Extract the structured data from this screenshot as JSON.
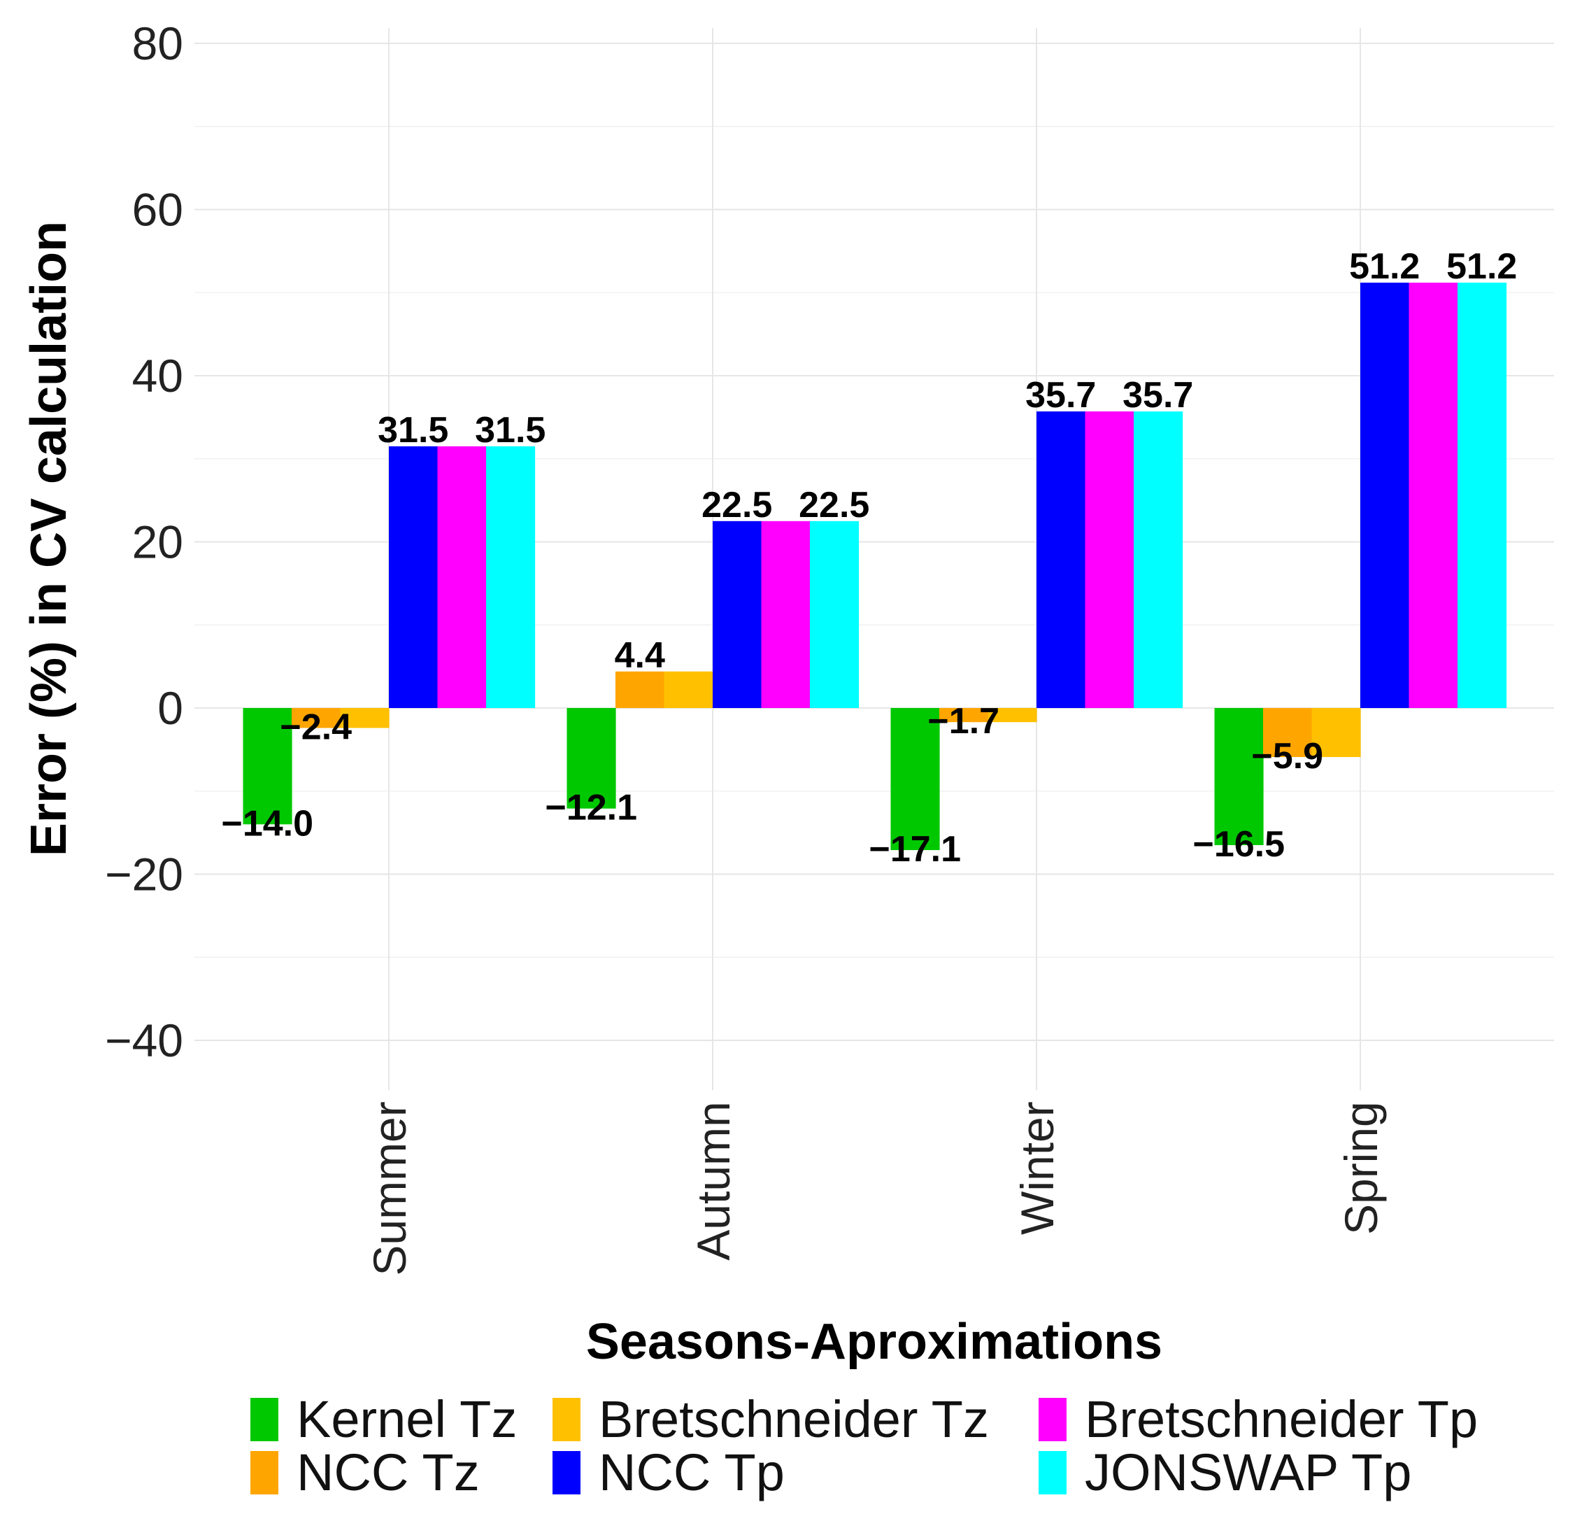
{
  "chart_data": {
    "type": "bar",
    "title": "",
    "xlabel": "Seasons-Aproximations",
    "ylabel": "Error (%) in CV calculation",
    "ylim": [
      -46,
      80
    ],
    "yticks": [
      -40,
      -20,
      0,
      20,
      40,
      60,
      80
    ],
    "ytick_labels": [
      "−40",
      "−20",
      "0",
      "20",
      "40",
      "60",
      "80"
    ],
    "grid": true,
    "legend_position": "bottom",
    "categories": [
      "Summer",
      "Autumn",
      "Winter",
      "Spring"
    ],
    "series": [
      {
        "name": "Kernel Tz",
        "color": "#00c800",
        "values": [
          -14.0,
          -12.1,
          -17.1,
          -16.5
        ],
        "labels": [
          "−14.0",
          "−12.1",
          "−17.1",
          "−16.5"
        ]
      },
      {
        "name": "NCC Tz",
        "color": "#ffa500",
        "values": [
          -2.4,
          4.4,
          -1.7,
          -5.9
        ],
        "labels": [
          "−2.4",
          "4.4",
          "−1.7",
          "−5.9"
        ]
      },
      {
        "name": "Bretschneider Tz",
        "color": "#ffc000",
        "values": [
          -2.4,
          4.4,
          -1.7,
          -5.9
        ],
        "labels": [
          "",
          "",
          "",
          ""
        ]
      },
      {
        "name": "NCC Tp",
        "color": "#0000ff",
        "values": [
          31.5,
          22.5,
          35.7,
          51.2
        ],
        "labels": [
          "31.5",
          "22.5",
          "35.7",
          "51.2"
        ]
      },
      {
        "name": "Bretschneider Tp",
        "color": "#ff00ff",
        "values": [
          31.5,
          22.5,
          35.7,
          51.2
        ],
        "labels": [
          "",
          "",
          "",
          ""
        ]
      },
      {
        "name": "JONSWAP Tp",
        "color": "#00ffff",
        "values": [
          31.5,
          22.5,
          35.7,
          51.2
        ],
        "labels": [
          "31.5",
          "22.5",
          "35.7",
          "51.2"
        ]
      }
    ],
    "legend_order": [
      "Kernel Tz",
      "Bretschneider Tz",
      "Bretschneider Tp",
      "NCC Tz",
      "NCC Tp",
      "JONSWAP Tp"
    ]
  }
}
